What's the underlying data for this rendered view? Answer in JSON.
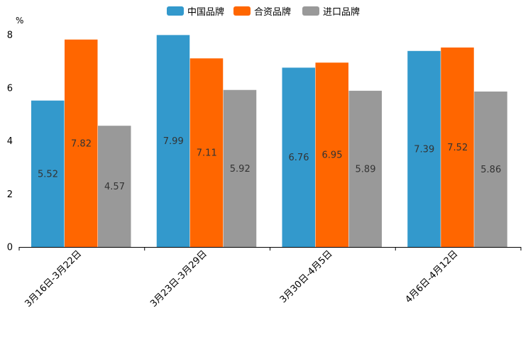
{
  "chart_data": {
    "type": "bar",
    "title": "",
    "ylabel": "%",
    "xlabel": "",
    "ylim": [
      0,
      8
    ],
    "yticks": [
      0,
      2,
      4,
      6,
      8
    ],
    "grid": false,
    "legend_position": "top-center",
    "categories": [
      "3月16日-3月22日",
      "3月23日-3月29日",
      "3月30日-4月5日",
      "4月6日-4月12日"
    ],
    "series": [
      {
        "name": "中国品牌",
        "color": "#3399cc",
        "values": [
          5.52,
          7.99,
          6.76,
          7.39
        ]
      },
      {
        "name": "合资品牌",
        "color": "#ff6600",
        "values": [
          7.82,
          7.11,
          6.95,
          7.52
        ]
      },
      {
        "name": "进口品牌",
        "color": "#999999",
        "values": [
          4.57,
          5.92,
          5.89,
          5.86
        ]
      }
    ]
  }
}
